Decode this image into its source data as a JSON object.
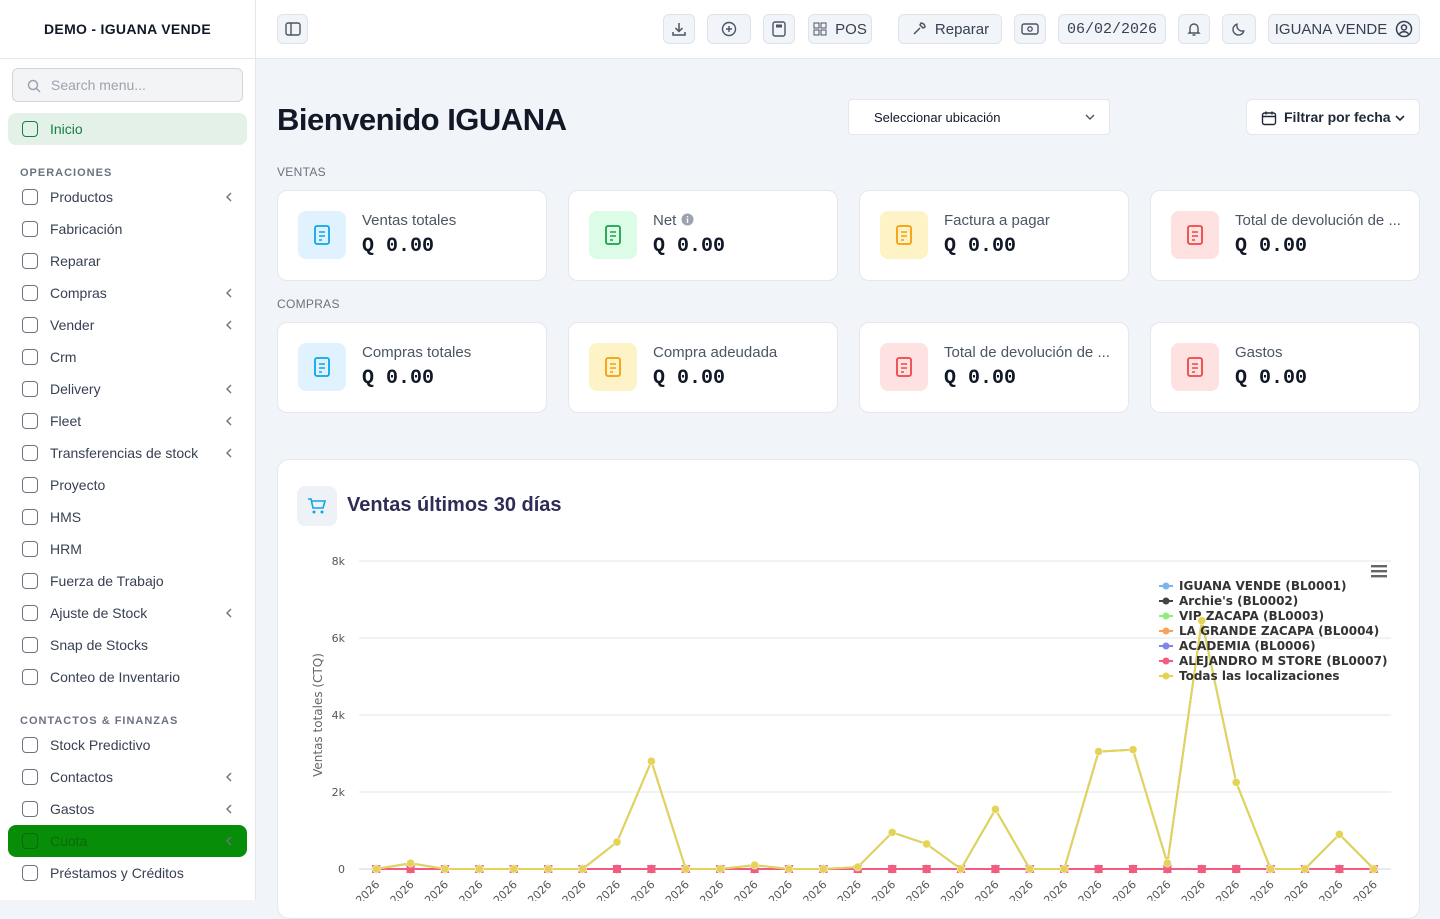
{
  "sidebar": {
    "title": "DEMO - IGUANA VENDE",
    "search_placeholder": "Search menu...",
    "home": "Inicio",
    "sections": [
      {
        "title": "OPERACIONES",
        "items": [
          {
            "label": "Productos",
            "submenu": true
          },
          {
            "label": "Fabricación",
            "submenu": false
          },
          {
            "label": "Reparar",
            "submenu": false
          },
          {
            "label": "Compras",
            "submenu": true
          },
          {
            "label": "Vender",
            "submenu": true
          },
          {
            "label": "Crm",
            "submenu": false
          },
          {
            "label": "Delivery",
            "submenu": true
          },
          {
            "label": "Fleet",
            "submenu": true
          },
          {
            "label": "Transferencias de stock",
            "submenu": true
          },
          {
            "label": "Proyecto",
            "submenu": false
          },
          {
            "label": "HMS",
            "submenu": false
          },
          {
            "label": "HRM",
            "submenu": false
          },
          {
            "label": "Fuerza de Trabajo",
            "submenu": false
          },
          {
            "label": "Ajuste de Stock",
            "submenu": true
          },
          {
            "label": "Snap de Stocks",
            "submenu": false
          },
          {
            "label": "Conteo de Inventario",
            "submenu": false
          }
        ]
      },
      {
        "title": "CONTACTOS & FINANZAS",
        "items": [
          {
            "label": "Stock Predictivo",
            "submenu": false
          },
          {
            "label": "Contactos",
            "submenu": true
          },
          {
            "label": "Gastos",
            "submenu": true
          },
          {
            "label": "Cuota",
            "submenu": true,
            "active": true
          },
          {
            "label": "Préstamos y Créditos",
            "submenu": false
          }
        ]
      }
    ]
  },
  "topbar": {
    "pos": "POS",
    "repair": "Reparar",
    "date": "06/02/2026",
    "user": "IGUANA VENDE"
  },
  "main": {
    "heading": "Bienvenido IGUANA",
    "location_select": "Seleccionar ubicación",
    "date_filter": "Filtrar por fecha",
    "groups": [
      {
        "title": "VENTAS",
        "cards": [
          {
            "label": "Ventas totales",
            "value": "Q 0.00",
            "color": "#0ea5e9"
          },
          {
            "label": "Net",
            "value": "Q 0.00",
            "color": "#16a34a"
          },
          {
            "label": "Factura a pagar",
            "value": "Q 0.00",
            "color": "#f59e0b"
          },
          {
            "label": "Total de devolución de ...",
            "value": "Q 0.00",
            "color": "#ef4444"
          }
        ]
      },
      {
        "title": "COMPRAS",
        "cards": [
          {
            "label": "Compras totales",
            "value": "Q 0.00",
            "color": "#0ea5e9"
          },
          {
            "label": "Compra adeudada",
            "value": "Q 0.00",
            "color": "#f59e0b"
          },
          {
            "label": "Total de devolución de ...",
            "value": "Q 0.00",
            "color": "#ef4444"
          },
          {
            "label": "Gastos",
            "value": "Q 0.00",
            "color": "#ef4444"
          }
        ]
      }
    ]
  },
  "chart_data": {
    "type": "line",
    "title": "Ventas últimos 30 días",
    "y_label": "Ventas totales (CTQ)",
    "categories": [
      "2026",
      "2026",
      "2026",
      "2026",
      "2026",
      "2026",
      "2026",
      "2026",
      "2026",
      "2026",
      "2026",
      "2026",
      "2026",
      "2026",
      "2026",
      "2026",
      "2026",
      "2026",
      "2026",
      "2026",
      "2026",
      "2026",
      "2026",
      "2026",
      "2026",
      "2026",
      "2026",
      "2026",
      "2026",
      "2026"
    ],
    "ylim": [
      0,
      8000
    ],
    "yticks": [
      0,
      {
        "value": 2000,
        "label": "2k"
      },
      {
        "value": 4000,
        "label": "4k"
      },
      {
        "value": 6000,
        "label": "6k"
      },
      {
        "value": 8000,
        "label": "8k"
      }
    ],
    "grid": true,
    "legend": "upper right",
    "series": [
      {
        "name": "IGUANA VENDE (BL0001)",
        "color": "#7cb5ec",
        "marker": "circle",
        "values": [
          0,
          150,
          0,
          0,
          0,
          0,
          0,
          700,
          2800,
          0,
          0,
          100,
          0,
          0,
          50,
          950,
          650,
          0,
          1550,
          0,
          0,
          3050,
          3100,
          150,
          6450,
          2250,
          0,
          0,
          900,
          0
        ]
      },
      {
        "name": "Archie's (BL0002)",
        "color": "#434348",
        "marker": "diamond",
        "values": [
          0,
          0,
          0,
          0,
          0,
          0,
          0,
          0,
          0,
          0,
          0,
          0,
          0,
          0,
          0,
          0,
          0,
          0,
          0,
          0,
          0,
          0,
          0,
          0,
          0,
          0,
          0,
          0,
          0,
          0
        ]
      },
      {
        "name": "VIP ZACAPA (BL0003)",
        "color": "#90ed7d",
        "marker": "square",
        "values": [
          0,
          0,
          0,
          0,
          0,
          0,
          0,
          0,
          0,
          0,
          0,
          0,
          0,
          0,
          0,
          0,
          0,
          0,
          0,
          0,
          0,
          0,
          0,
          0,
          0,
          0,
          0,
          0,
          0,
          0
        ]
      },
      {
        "name": "LA GRANDE ZACAPA (BL0004)",
        "color": "#f7a35c",
        "marker": "triangle",
        "values": [
          0,
          0,
          0,
          0,
          0,
          0,
          0,
          0,
          0,
          0,
          0,
          0,
          0,
          0,
          0,
          0,
          0,
          0,
          0,
          0,
          0,
          0,
          0,
          0,
          0,
          0,
          0,
          0,
          0,
          0
        ]
      },
      {
        "name": "ACADEMIA (BL0006)",
        "color": "#8085e9",
        "marker": "triangle-down",
        "values": [
          0,
          0,
          0,
          0,
          0,
          0,
          0,
          0,
          0,
          0,
          0,
          0,
          0,
          0,
          0,
          0,
          0,
          0,
          0,
          0,
          0,
          0,
          0,
          0,
          0,
          0,
          0,
          0,
          0,
          0
        ]
      },
      {
        "name": "ALEJANDRO M STORE (BL0007)",
        "color": "#f15c80",
        "marker": "square",
        "values": [
          0,
          0,
          0,
          0,
          0,
          0,
          0,
          0,
          0,
          0,
          0,
          0,
          0,
          0,
          0,
          0,
          0,
          0,
          0,
          0,
          0,
          0,
          0,
          0,
          0,
          0,
          0,
          0,
          0,
          0
        ]
      },
      {
        "name": "Todas las localizaciones",
        "color": "#e4d354",
        "marker": "circle",
        "values": [
          0,
          150,
          0,
          0,
          0,
          0,
          0,
          700,
          2800,
          0,
          0,
          100,
          0,
          0,
          50,
          950,
          650,
          0,
          1550,
          0,
          0,
          3050,
          3100,
          150,
          6450,
          2250,
          0,
          0,
          900,
          0
        ]
      }
    ]
  }
}
